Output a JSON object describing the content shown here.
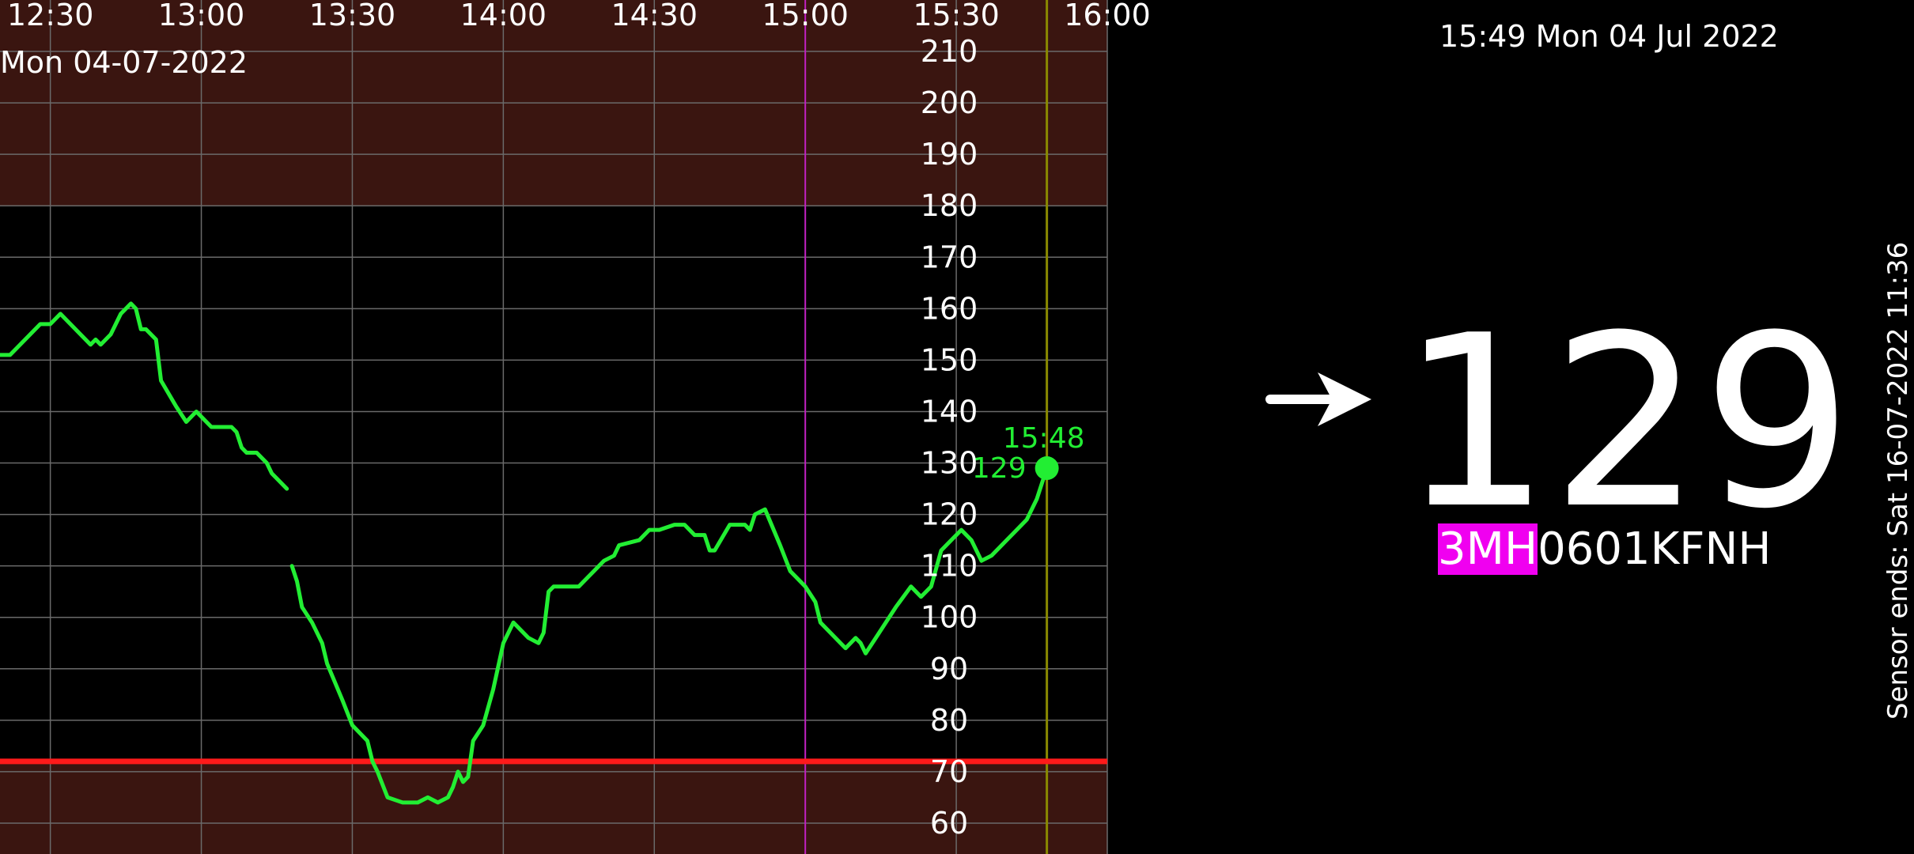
{
  "header": {
    "date_label": "Mon 04-07-2022",
    "clock": "15:49 Mon 04 Jul 2022"
  },
  "current": {
    "value": "129",
    "trend_icon": "arrow-right-icon",
    "sensor_prefix": "3MH",
    "sensor_suffix": "0601KFNH",
    "sensor_ends": "Sensor ends: Sat 16-07-2022 11:36"
  },
  "colors": {
    "background": "#000000",
    "out_of_range": "#3a1510",
    "line": "#22ee33",
    "low_threshold": "#ff1a1a",
    "now_marker": "#8a8a00",
    "hour_marker": "#c020c0",
    "sensor_highlight": "#f000f0"
  },
  "chart_data": {
    "type": "line",
    "x_ticks": [
      "12:30",
      "13:00",
      "13:30",
      "14:00",
      "14:30",
      "15:00",
      "15:30",
      "16:00"
    ],
    "y_ticks": [
      "60",
      "70",
      "80",
      "90",
      "100",
      "110",
      "120",
      "130",
      "140",
      "150",
      "160",
      "170",
      "180",
      "190",
      "200",
      "210"
    ],
    "xlim": [
      "12:20",
      "16:00"
    ],
    "ylim": [
      54,
      220
    ],
    "low_threshold": 72,
    "high_threshold": 180,
    "latest_point": {
      "time": "15:48",
      "value": 129,
      "time_label": "15:48",
      "value_label": "129"
    },
    "series": [
      {
        "segments": [
          [
            [
              "12:20",
              151
            ],
            [
              "12:22",
              151
            ],
            [
              "12:25",
              154
            ],
            [
              "12:28",
              157
            ],
            [
              "12:30",
              157
            ],
            [
              "12:32",
              159
            ],
            [
              "12:34",
              157
            ],
            [
              "12:36",
              155
            ],
            [
              "12:38",
              153
            ],
            [
              "12:39",
              154
            ],
            [
              "12:40",
              153
            ],
            [
              "12:42",
              155
            ],
            [
              "12:44",
              159
            ],
            [
              "12:46",
              161
            ],
            [
              "12:47",
              160
            ],
            [
              "12:48",
              156
            ],
            [
              "12:49",
              156
            ],
            [
              "12:51",
              154
            ],
            [
              "12:52",
              146
            ],
            [
              "12:55",
              141
            ],
            [
              "12:57",
              138
            ],
            [
              "12:59",
              140
            ],
            [
              "13:02",
              137
            ],
            [
              "13:06",
              137
            ],
            [
              "13:07",
              136
            ],
            [
              "13:08",
              133
            ],
            [
              "13:09",
              132
            ],
            [
              "13:11",
              132
            ],
            [
              "13:13",
              130
            ],
            [
              "13:14",
              128
            ],
            [
              "13:15",
              127
            ],
            [
              "13:17",
              125
            ]
          ],
          [
            [
              "13:18",
              110
            ],
            [
              "13:19",
              107
            ],
            [
              "13:20",
              102
            ],
            [
              "13:22",
              99
            ],
            [
              "13:24",
              95
            ],
            [
              "13:25",
              91
            ],
            [
              "13:28",
              84
            ],
            [
              "13:30",
              79
            ],
            [
              "13:33",
              76
            ],
            [
              "13:34",
              72
            ],
            [
              "13:35",
              70
            ],
            [
              "13:37",
              65
            ],
            [
              "13:40",
              64
            ],
            [
              "13:43",
              64
            ],
            [
              "13:45",
              65
            ],
            [
              "13:47",
              64
            ],
            [
              "13:49",
              65
            ],
            [
              "13:50",
              67
            ],
            [
              "13:51",
              70
            ],
            [
              "13:52",
              68
            ],
            [
              "13:53",
              69
            ],
            [
              "13:54",
              76
            ],
            [
              "13:56",
              79
            ],
            [
              "13:58",
              86
            ],
            [
              "14:00",
              95
            ],
            [
              "14:02",
              99
            ],
            [
              "14:05",
              96
            ],
            [
              "14:07",
              95
            ],
            [
              "14:08",
              97
            ],
            [
              "14:09",
              105
            ],
            [
              "14:10",
              106
            ],
            [
              "14:15",
              106
            ],
            [
              "14:17",
              108
            ],
            [
              "14:18",
              109
            ],
            [
              "14:20",
              111
            ],
            [
              "14:22",
              112
            ],
            [
              "14:23",
              114
            ],
            [
              "14:27",
              115
            ],
            [
              "14:29",
              117
            ],
            [
              "14:31",
              117
            ],
            [
              "14:34",
              118
            ],
            [
              "14:36",
              118
            ],
            [
              "14:38",
              116
            ],
            [
              "14:40",
              116
            ],
            [
              "14:41",
              113
            ],
            [
              "14:42",
              113
            ],
            [
              "14:45",
              118
            ],
            [
              "14:48",
              118
            ],
            [
              "14:49",
              117
            ],
            [
              "14:50",
              120
            ],
            [
              "14:52",
              121
            ],
            [
              "14:55",
              114
            ],
            [
              "14:57",
              109
            ],
            [
              "14:58",
              108
            ],
            [
              "15:00",
              106
            ],
            [
              "15:02",
              103
            ],
            [
              "15:03",
              99
            ],
            [
              "15:05",
              97
            ],
            [
              "15:07",
              95
            ],
            [
              "15:08",
              94
            ],
            [
              "15:10",
              96
            ],
            [
              "15:11",
              95
            ],
            [
              "15:12",
              93
            ],
            [
              "15:14",
              96
            ],
            [
              "15:16",
              99
            ],
            [
              "15:18",
              102
            ],
            [
              "15:21",
              106
            ],
            [
              "15:23",
              104
            ],
            [
              "15:25",
              106
            ],
            [
              "15:27",
              113
            ],
            [
              "15:29",
              115
            ],
            [
              "15:31",
              117
            ],
            [
              "15:33",
              115
            ],
            [
              "15:35",
              111
            ],
            [
              "15:37",
              112
            ],
            [
              "15:39",
              114
            ],
            [
              "15:42",
              117
            ],
            [
              "15:44",
              119
            ],
            [
              "15:46",
              123
            ],
            [
              "15:48",
              129
            ]
          ]
        ]
      }
    ]
  }
}
